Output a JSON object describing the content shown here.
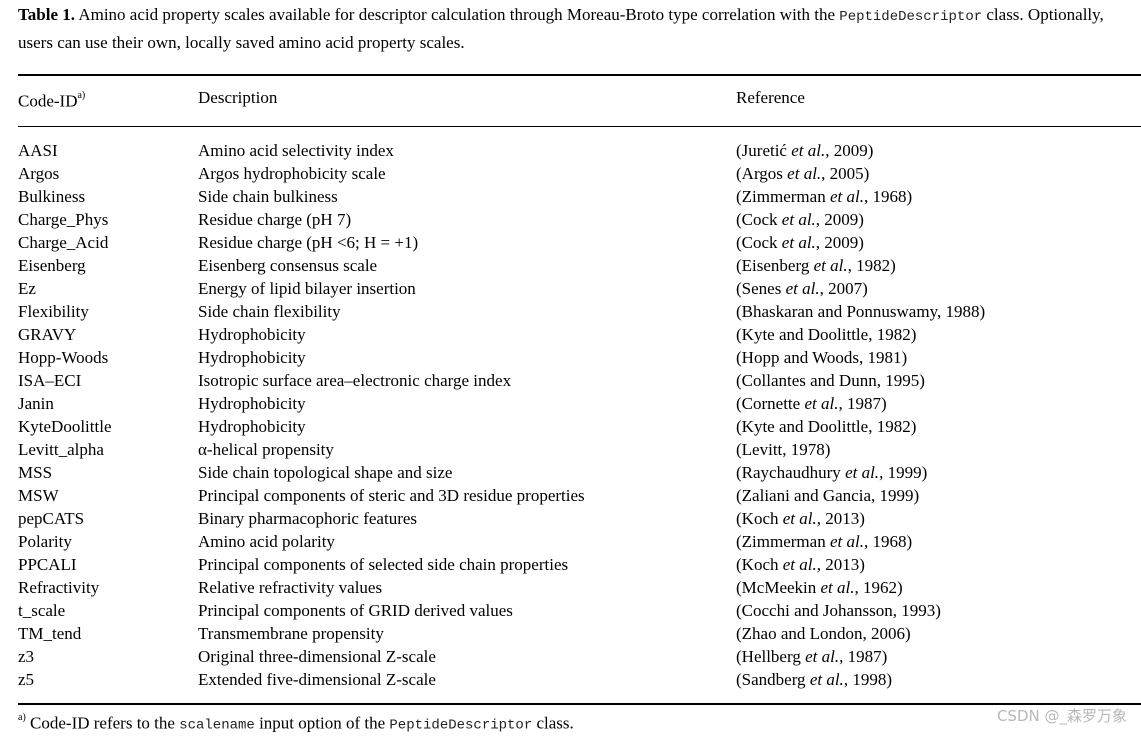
{
  "caption": {
    "label": "Table 1.",
    "text_before": " Amino acid property scales available for descriptor calculation through Moreau-Broto type correlation with the ",
    "class_name": "PeptideDescriptor",
    "text_after": " class. Optionally, users can use their own, locally saved amino acid property scales."
  },
  "header": {
    "code_id": "Code-ID",
    "code_id_sup": "a)",
    "description": "Description",
    "reference": "Reference"
  },
  "rows": [
    {
      "code": "AASI",
      "desc": "Amino acid selectivity index",
      "ref_pre": "(Juretić ",
      "ref_etal": "et al.",
      "ref_post": ", 2009)"
    },
    {
      "code": "Argos",
      "desc": "Argos hydrophobicity scale",
      "ref_pre": "(Argos ",
      "ref_etal": "et al.",
      "ref_post": ", 2005)"
    },
    {
      "code": "Bulkiness",
      "desc": "Side chain bulkiness",
      "ref_pre": "(Zimmerman ",
      "ref_etal": "et al.",
      "ref_post": ", 1968)"
    },
    {
      "code": "Charge_Phys",
      "desc": "Residue charge (pH 7)",
      "ref_pre": "(Cock ",
      "ref_etal": "et al.",
      "ref_post": ", 2009)"
    },
    {
      "code": "Charge_Acid",
      "desc": "Residue charge (pH <6; H = +1)",
      "ref_pre": "(Cock ",
      "ref_etal": "et al.",
      "ref_post": ", 2009)"
    },
    {
      "code": "Eisenberg",
      "desc": "Eisenberg consensus scale",
      "ref_pre": "(Eisenberg ",
      "ref_etal": "et al.",
      "ref_post": ", 1982)"
    },
    {
      "code": "Ez",
      "desc": "Energy of lipid bilayer insertion",
      "ref_pre": "(Senes ",
      "ref_etal": "et al.",
      "ref_post": ", 2007)"
    },
    {
      "code": "Flexibility",
      "desc": "Side chain flexibility",
      "ref_pre": "(Bhaskaran and Ponnuswamy, 1988)",
      "ref_etal": "",
      "ref_post": ""
    },
    {
      "code": "GRAVY",
      "desc": "Hydrophobicity",
      "ref_pre": "(Kyte and Doolittle, 1982)",
      "ref_etal": "",
      "ref_post": ""
    },
    {
      "code": "Hopp-Woods",
      "desc": "Hydrophobicity",
      "ref_pre": "(Hopp and Woods, 1981)",
      "ref_etal": "",
      "ref_post": ""
    },
    {
      "code": "ISA–ECI",
      "desc": "Isotropic surface area–electronic charge index",
      "ref_pre": "(Collantes and Dunn, 1995)",
      "ref_etal": "",
      "ref_post": ""
    },
    {
      "code": "Janin",
      "desc": "Hydrophobicity",
      "ref_pre": "(Cornette ",
      "ref_etal": "et al.",
      "ref_post": ", 1987)"
    },
    {
      "code": "KyteDoolittle",
      "desc": "Hydrophobicity",
      "ref_pre": "(Kyte and Doolittle, 1982)",
      "ref_etal": "",
      "ref_post": ""
    },
    {
      "code": "Levitt_alpha",
      "desc": "α-helical propensity",
      "ref_pre": "(Levitt, 1978)",
      "ref_etal": "",
      "ref_post": ""
    },
    {
      "code": "MSS",
      "desc": "Side chain topological shape and size",
      "ref_pre": "(Raychaudhury ",
      "ref_etal": "et al.",
      "ref_post": ", 1999)"
    },
    {
      "code": "MSW",
      "desc": "Principal components of steric and 3D residue properties",
      "ref_pre": "(Zaliani and Gancia, 1999)",
      "ref_etal": "",
      "ref_post": ""
    },
    {
      "code": "pepCATS",
      "desc": "Binary pharmacophoric features",
      "ref_pre": "(Koch ",
      "ref_etal": "et al.",
      "ref_post": ", 2013)"
    },
    {
      "code": "Polarity",
      "desc": "Amino acid polarity",
      "ref_pre": "(Zimmerman ",
      "ref_etal": "et al.",
      "ref_post": ", 1968)"
    },
    {
      "code": "PPCALI",
      "desc": "Principal components of selected side chain properties",
      "ref_pre": "(Koch ",
      "ref_etal": "et al.",
      "ref_post": ", 2013)"
    },
    {
      "code": "Refractivity",
      "desc": "Relative refractivity values",
      "ref_pre": "(McMeekin ",
      "ref_etal": "et al.",
      "ref_post": ", 1962)"
    },
    {
      "code": "t_scale",
      "desc": "Principal components of GRID derived values",
      "ref_pre": "(Cocchi and Johansson, 1993)",
      "ref_etal": "",
      "ref_post": ""
    },
    {
      "code": "TM_tend",
      "desc": "Transmembrane propensity",
      "ref_pre": "(Zhao and London, 2006)",
      "ref_etal": "",
      "ref_post": ""
    },
    {
      "code": "z3",
      "desc": "Original three-dimensional Z-scale",
      "ref_pre": "(Hellberg ",
      "ref_etal": "et al.",
      "ref_post": ", 1987)"
    },
    {
      "code": "z5",
      "desc": "Extended five-dimensional Z-scale",
      "ref_pre": "(Sandberg ",
      "ref_etal": "et al.",
      "ref_post": ", 1998)"
    }
  ],
  "footnote": {
    "sup": "a)",
    "text_before": " Code-ID refers to the ",
    "option_name": "scalename",
    "text_middle": " input option of the ",
    "class_name": "PeptideDescriptor",
    "text_after": " class."
  },
  "watermark": "CSDN @_森罗万象"
}
